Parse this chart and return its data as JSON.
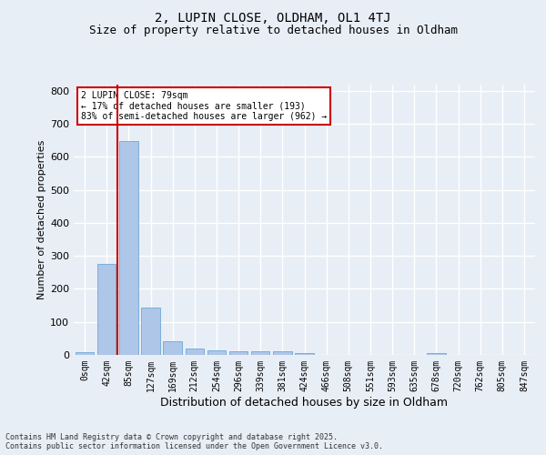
{
  "title1": "2, LUPIN CLOSE, OLDHAM, OL1 4TJ",
  "title2": "Size of property relative to detached houses in Oldham",
  "xlabel": "Distribution of detached houses by size in Oldham",
  "ylabel": "Number of detached properties",
  "footnote": "Contains HM Land Registry data © Crown copyright and database right 2025.\nContains public sector information licensed under the Open Government Licence v3.0.",
  "bar_labels": [
    "0sqm",
    "42sqm",
    "85sqm",
    "127sqm",
    "169sqm",
    "212sqm",
    "254sqm",
    "296sqm",
    "339sqm",
    "381sqm",
    "424sqm",
    "466sqm",
    "508sqm",
    "551sqm",
    "593sqm",
    "635sqm",
    "678sqm",
    "720sqm",
    "762sqm",
    "805sqm",
    "847sqm"
  ],
  "bar_values": [
    8,
    275,
    648,
    142,
    40,
    20,
    14,
    12,
    12,
    10,
    5,
    0,
    0,
    0,
    0,
    0,
    6,
    0,
    0,
    0,
    0
  ],
  "bar_color": "#aec6e8",
  "bar_edge_color": "#5a9fd4",
  "vline_x_index": 2,
  "vline_color": "#cc0000",
  "annotation_text": "2 LUPIN CLOSE: 79sqm\n← 17% of detached houses are smaller (193)\n83% of semi-detached houses are larger (962) →",
  "annotation_box_color": "#cc0000",
  "ylim": [
    0,
    820
  ],
  "yticks": [
    0,
    100,
    200,
    300,
    400,
    500,
    600,
    700,
    800
  ],
  "bg_color": "#e8eef6",
  "plot_bg_color": "#e8eef6",
  "grid_color": "#ffffff",
  "title_fontsize": 10,
  "subtitle_fontsize": 9,
  "ylabel_fontsize": 8,
  "xlabel_fontsize": 9,
  "tick_fontsize": 7,
  "footnote_fontsize": 6
}
